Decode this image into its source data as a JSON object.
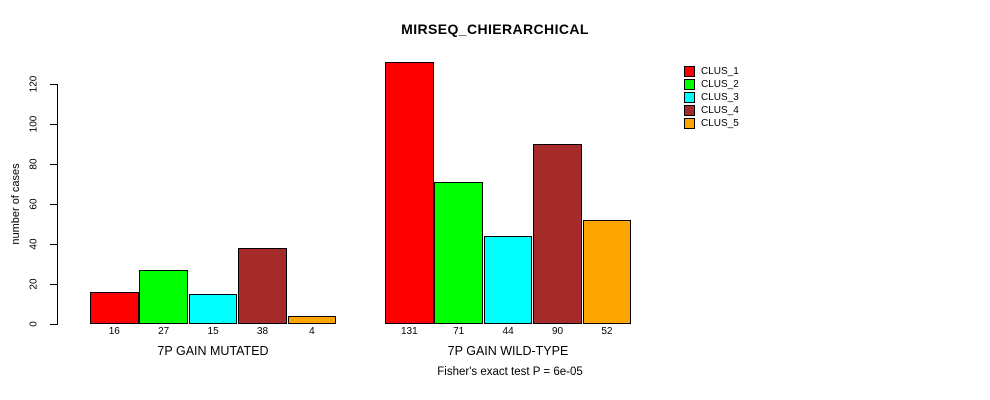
{
  "chart_data": {
    "type": "bar",
    "title": "MIRSEQ_CHIERARCHICAL",
    "ylabel": "number of cases",
    "categories": [
      "7P GAIN MUTATED",
      "7P GAIN WILD-TYPE"
    ],
    "series": [
      {
        "name": "CLUS_1",
        "color": "#ff0000",
        "values": [
          16,
          131
        ]
      },
      {
        "name": "CLUS_2",
        "color": "#00ff00",
        "values": [
          27,
          71
        ]
      },
      {
        "name": "CLUS_3",
        "color": "#00ffff",
        "values": [
          15,
          44
        ]
      },
      {
        "name": "CLUS_4",
        "color": "#a52a2a",
        "values": [
          38,
          90
        ]
      },
      {
        "name": "CLUS_5",
        "color": "#ffa500",
        "values": [
          4,
          52
        ]
      }
    ],
    "yticks": [
      0,
      20,
      40,
      60,
      80,
      100,
      120
    ],
    "ylim": [
      0,
      131
    ],
    "bar_value_labels_shown": true,
    "grid": false,
    "legend_position": "right-outside",
    "annotation": "Fisher's exact test P = 6e-05"
  }
}
